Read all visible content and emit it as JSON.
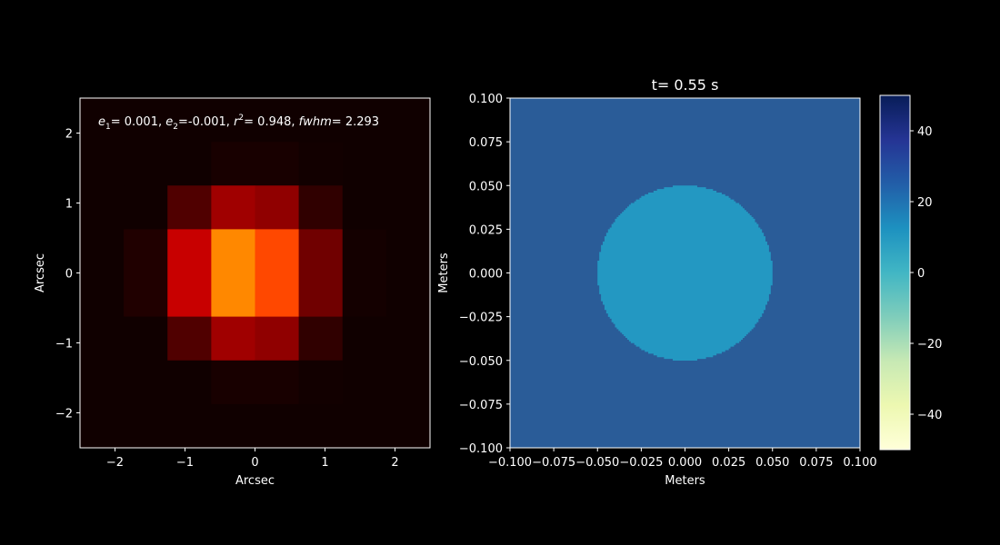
{
  "chart_data": [
    {
      "type": "heatmap",
      "title": "",
      "xlabel": "Arcsec",
      "ylabel": "Arcsec",
      "xlim": [
        -2.5,
        2.5
      ],
      "ylim": [
        -2.5,
        2.5
      ],
      "xticks": [
        "−2",
        "−1",
        "0",
        "1",
        "2"
      ],
      "yticks": [
        "2",
        "1",
        "0",
        "−1",
        "−2"
      ],
      "xtick_values": [
        -2,
        -1,
        0,
        1,
        2
      ],
      "ytick_values": [
        2,
        1,
        0,
        -1,
        -2
      ],
      "annotation": {
        "e1_label": "e",
        "e1_sub": "1",
        "e1_value": "= 0.001, ",
        "e2_label": "e",
        "e2_sub": "2",
        "e2_value": "=-0.001, ",
        "r_label": "r",
        "r_sup": "2",
        "r_value": "= 0.948, ",
        "fwhm_label": "fwhm",
        "fwhm_value": "= 2.293"
      },
      "pixel_grid": {
        "x_edges": [
          -2.5,
          -1.875,
          -1.25,
          -0.625,
          0,
          0.625,
          1.25,
          1.875,
          2.5
        ],
        "y_edges": [
          2.5,
          1.875,
          1.25,
          0.625,
          0,
          -0.625,
          -1.25,
          -1.875,
          -2.5
        ],
        "colors": [
          [
            "#100000",
            "#100000",
            "#100000",
            "#100000",
            "#100000",
            "#100000",
            "#100000",
            "#100000"
          ],
          [
            "#100000",
            "#100000",
            "#100000",
            "#180000",
            "#180000",
            "#120000",
            "#100000",
            "#100000"
          ],
          [
            "#100000",
            "#100000",
            "#500000",
            "#a00000",
            "#900000",
            "#300000",
            "#100000",
            "#100000"
          ],
          [
            "#100000",
            "#200000",
            "#c80000",
            "#ff8800",
            "#ff4800",
            "#700000",
            "#140000",
            "#100000"
          ],
          [
            "#100000",
            "#200000",
            "#c80000",
            "#ff8800",
            "#ff4800",
            "#700000",
            "#140000",
            "#100000"
          ],
          [
            "#100000",
            "#100000",
            "#500000",
            "#a00000",
            "#900000",
            "#300000",
            "#100000",
            "#100000"
          ],
          [
            "#100000",
            "#100000",
            "#100000",
            "#180000",
            "#180000",
            "#120000",
            "#100000",
            "#100000"
          ],
          [
            "#100000",
            "#100000",
            "#100000",
            "#100000",
            "#100000",
            "#100000",
            "#100000",
            "#100000"
          ]
        ]
      }
    },
    {
      "type": "heatmap",
      "title": "t= 0.55 s",
      "xlabel": "Meters",
      "ylabel": "Meters",
      "xlim": [
        -0.1,
        0.1
      ],
      "ylim": [
        -0.1,
        0.1
      ],
      "xticks": [
        "−0.100",
        "−0.075",
        "−0.050",
        "−0.025",
        "0.000",
        "0.025",
        "0.050",
        "0.075",
        "0.100"
      ],
      "xtick_values": [
        -0.1,
        -0.075,
        -0.05,
        -0.025,
        0,
        0.025,
        0.05,
        0.075,
        0.1
      ],
      "yticks": [
        "0.100",
        "0.075",
        "0.050",
        "0.025",
        "0.000",
        "−0.025",
        "−0.050",
        "−0.075",
        "−0.100"
      ],
      "ytick_values": [
        0.1,
        0.075,
        0.05,
        0.025,
        0,
        -0.025,
        -0.05,
        -0.075,
        -0.1
      ],
      "background_value": 28,
      "disk": {
        "center": [
          0.0,
          0.0
        ],
        "radius": 0.05,
        "value": 14
      },
      "colormap": "YlGnBu",
      "colorbar": {
        "range": [
          -50,
          50
        ],
        "ticks": [
          "40",
          "20",
          "0",
          "−20",
          "−40"
        ],
        "tick_values": [
          40,
          20,
          0,
          -20,
          -40
        ]
      },
      "colors": {
        "background": "#2a5c98",
        "disk": "#2398c2"
      }
    }
  ]
}
